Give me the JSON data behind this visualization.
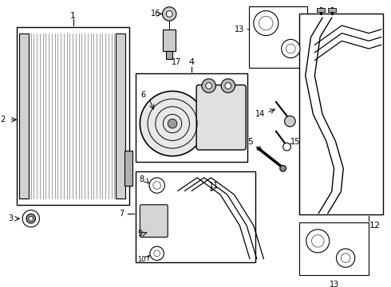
{
  "bg_color": "#ffffff",
  "line_color": "#000000",
  "font_size": 7,
  "dpi": 100,
  "figw": 4.9,
  "figh": 3.6
}
